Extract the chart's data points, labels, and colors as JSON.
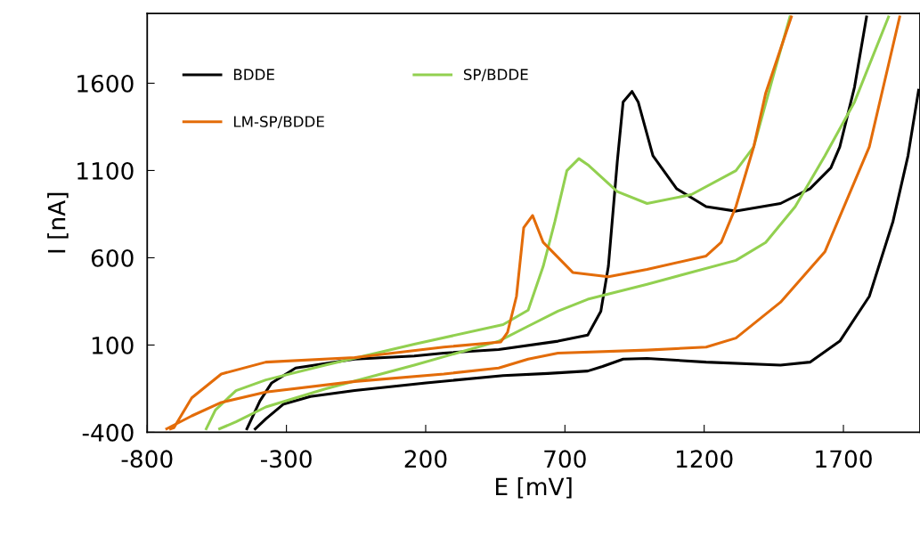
{
  "chart_data": {
    "type": "line",
    "xlabel": "E [mV]",
    "ylabel": "I [nA]",
    "xlim": [
      -800,
      1975
    ],
    "ylim": [
      -400,
      2000
    ],
    "xticks": [
      -800,
      -300,
      200,
      700,
      1200,
      1700
    ],
    "yticks": [
      -400,
      100,
      600,
      1100,
      1600
    ],
    "grid": false,
    "legend": "top left",
    "marker": "none",
    "line_style": "solid",
    "series": [
      {
        "name": "BDDE",
        "color": "#000000",
        "x": [
          -412,
          -374,
          -310,
          -214,
          -55,
          201,
          478,
          638,
          782,
          835,
          909,
          995,
          1207,
          1474,
          1580,
          1687,
          1793,
          1878,
          1932,
          1970,
          null,
          1783,
          1740,
          1687,
          1655,
          1580,
          1474,
          1314,
          1207,
          1101,
          1016,
          963,
          941,
          909,
          888,
          856,
          829,
          782,
          675,
          462,
          265,
          159,
          -55,
          -267,
          -353,
          -395,
          -442
        ],
        "values": [
          -380,
          -323,
          -238,
          -195,
          -161,
          -117,
          -75,
          -63,
          -49,
          -23,
          19,
          23,
          2,
          -15,
          2,
          122,
          379,
          808,
          1185,
          1560,
          null,
          1980,
          1579,
          1236,
          1116,
          996,
          911,
          867,
          893,
          996,
          1185,
          1493,
          1553,
          1493,
          1150,
          551,
          294,
          157,
          122,
          74,
          54,
          37,
          19,
          -32,
          -117,
          -220,
          -380
        ]
      },
      {
        "name": "SP/BDDE",
        "color": "#92d050",
        "x": [
          -540,
          -481,
          -374,
          -161,
          159,
          462,
          568,
          675,
          782,
          995,
          1314,
          1421,
          1527,
          1634,
          1740,
          1862,
          null,
          1508,
          1452,
          1378,
          1314,
          1154,
          995,
          888,
          782,
          750,
          707,
          664,
          622,
          568,
          478,
          159,
          -161,
          -374,
          -481,
          -555,
          -588
        ],
        "values": [
          -380,
          -340,
          -255,
          -152,
          -15,
          122,
          208,
          294,
          362,
          448,
          585,
          688,
          893,
          1185,
          1493,
          1980,
          null,
          1980,
          1664,
          1236,
          1099,
          962,
          911,
          979,
          1133,
          1168,
          1099,
          808,
          551,
          300,
          217,
          105,
          -15,
          -100,
          -161,
          -272,
          -380
        ]
      },
      {
        "name": "LM-SP/BDDE",
        "color": "#e36c09",
        "x": [
          -730,
          -640,
          -534,
          -374,
          -55,
          265,
          462,
          568,
          675,
          995,
          1207,
          1314,
          1474,
          1634,
          1793,
          1902,
          null,
          1513,
          1421,
          1378,
          1314,
          1261,
          1207,
          995,
          856,
          728,
          622,
          584,
          552,
          526,
          494,
          470,
          265,
          -55,
          -374,
          -534,
          -640,
          -704,
          -716
        ],
        "values": [
          -380,
          -306,
          -229,
          -169,
          -109,
          -66,
          -32,
          19,
          54,
          71,
          88,
          140,
          345,
          636,
          1236,
          1980,
          null,
          1980,
          1544,
          1236,
          893,
          688,
          610,
          533,
          491,
          516,
          688,
          842,
          773,
          379,
          173,
          118,
          88,
          28,
          2,
          -66,
          -203,
          -374,
          -380
        ]
      }
    ]
  }
}
